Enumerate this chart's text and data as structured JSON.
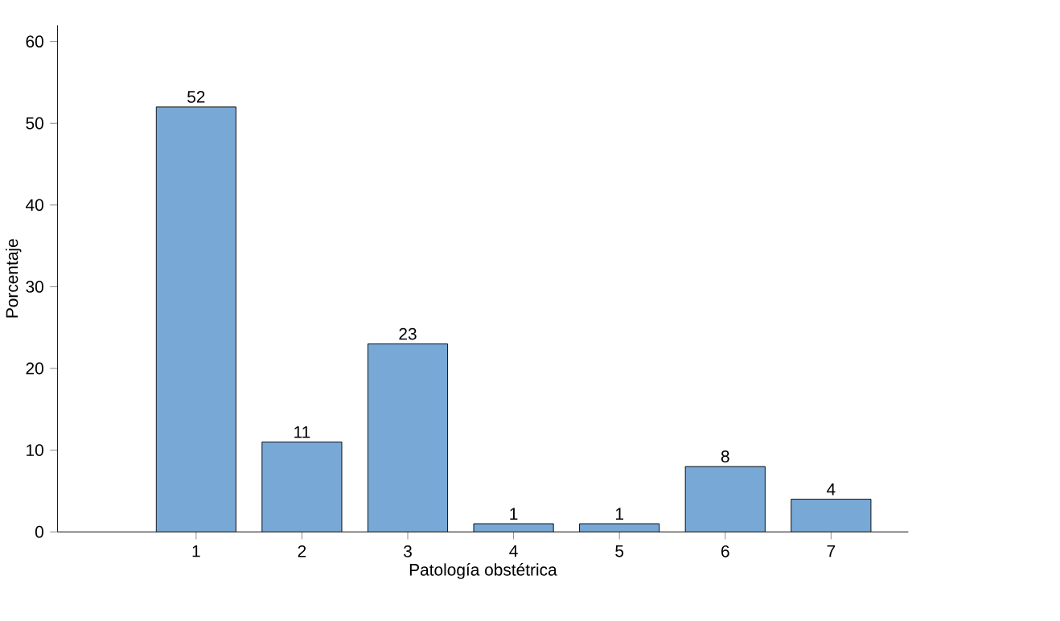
{
  "chart_data": {
    "type": "bar",
    "xlabel": "Patología obstétrica",
    "ylabel": "Porcentaje",
    "categories": [
      "1",
      "2",
      "3",
      "4",
      "5",
      "6",
      "7"
    ],
    "values": [
      52,
      11,
      23,
      1,
      1,
      8,
      4
    ],
    "data_labels": true,
    "color": "#78a9d6",
    "ylim": [
      0,
      62
    ],
    "yticks": [
      0,
      10,
      20,
      30,
      40,
      50,
      60
    ],
    "grid": false
  }
}
